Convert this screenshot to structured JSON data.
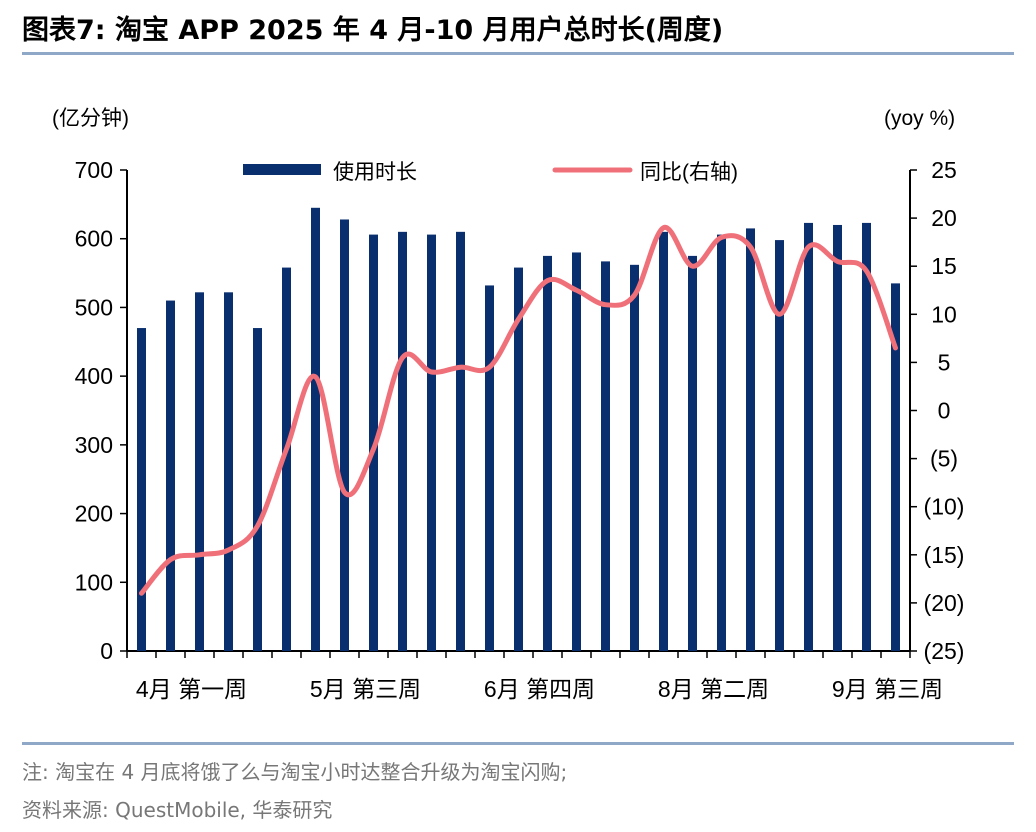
{
  "title": "图表7:   淘宝 APP 2025 年 4 月-10 月用户总时长(周度)",
  "note": "注:  淘宝在 4 月底将饿了么与淘宝小时达整合升级为淘宝闪购;",
  "source": "资料来源:  QuestMobile,  华泰研究",
  "chart_data": {
    "type": "bar",
    "left_unit": "(亿分钟)",
    "right_unit": "(yoy %)",
    "legend": {
      "bar": "使用时长",
      "line": "同比(右轴)"
    },
    "colors": {
      "bar": "#0a2f6e",
      "line": "#f0707a"
    },
    "y_left": {
      "min": 0,
      "max": 700,
      "ticks": [
        "0",
        "100",
        "200",
        "300",
        "400",
        "500",
        "600",
        "700"
      ]
    },
    "y_right": {
      "min": -25,
      "max": 25,
      "ticks": [
        "(25)",
        "(20)",
        "(15)",
        "(10)",
        "(5)",
        "0",
        "5",
        "10",
        "15",
        "20",
        "25"
      ]
    },
    "x_tick_labels": [
      {
        "index": 0,
        "label": "4月 第一周"
      },
      {
        "index": 6,
        "label": "5月 第三周"
      },
      {
        "index": 12,
        "label": "6月 第四周"
      },
      {
        "index": 18,
        "label": "8月 第二周"
      },
      {
        "index": 24,
        "label": "9月 第三周"
      }
    ],
    "series": [
      {
        "name": "使用时长",
        "axis": "left",
        "values": [
          470,
          510,
          522,
          522,
          470,
          558,
          645,
          628,
          606,
          610,
          606,
          610,
          532,
          558,
          575,
          580,
          567,
          562,
          610,
          575,
          606,
          615,
          598,
          623,
          620,
          623,
          535
        ]
      },
      {
        "name": "同比(右轴)",
        "axis": "right",
        "values": [
          -19,
          -15.5,
          -15,
          -14.5,
          -12,
          -4,
          3.5,
          -8.5,
          -4,
          5.5,
          4,
          4.5,
          4.5,
          9.5,
          13.5,
          12.5,
          11,
          12,
          19,
          15,
          18,
          17,
          10,
          17,
          15.5,
          14.5,
          6.5
        ]
      }
    ]
  }
}
